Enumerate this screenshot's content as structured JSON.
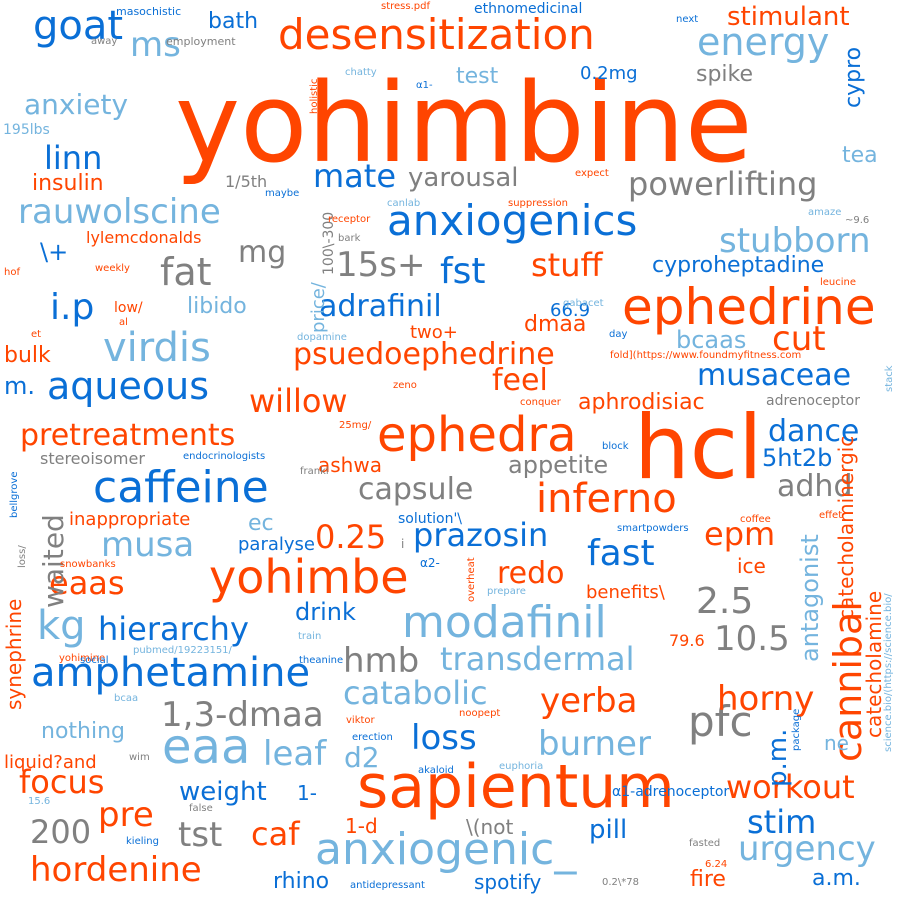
{
  "words": [
    "yohimbine",
    "hcl",
    "sapientum",
    "ephedrine",
    "ephedra",
    "caffeine",
    "yohimbe",
    "desensitization",
    "modafinil",
    "amphetamine",
    "anxiogenics",
    "anxiogenic_",
    "eaa",
    "pfc",
    "cannibal",
    "catecholamine",
    "energy",
    "rauwolscine",
    "virdis",
    "aqueous",
    "kg",
    "fat",
    "fst",
    "ms",
    "goat",
    "anxiety",
    "linn",
    "insulin",
    "mate",
    "yarousal",
    "powerlifting",
    "stubborn",
    "15s+",
    "mg",
    "stuff",
    "cyproheptadine",
    "i.p",
    "adrafinil",
    "psuedoephedrine",
    "musaceae",
    "cut",
    "feel",
    "willow",
    "pretreatments",
    "inferno",
    "capsule",
    "adhd",
    "dance",
    "5ht2b",
    "appetite",
    "prazosin",
    "fast",
    "epm",
    "0.25",
    "musa",
    "eaas",
    "redo",
    "2.5",
    "10.5",
    "hierarchy",
    "drink",
    "hmb",
    "transdermal",
    "catabolic",
    "horny",
    "yerba",
    "1,3-dmaa",
    "loss",
    "burner",
    "leaf",
    "d2",
    "nothing",
    "liquid?and",
    "focus",
    "pre",
    "200",
    "tst",
    "caf",
    "weight",
    "hordenine",
    "rhino",
    "fire",
    "pill",
    "stim",
    "workout",
    "urgency",
    "a.m.",
    "spotify",
    "1-d",
    "\\(not",
    "ne",
    "p.m.",
    "antagonist",
    "catecholaminergic",
    "stimulant",
    "cypro",
    "tea",
    "waited",
    "synephrine",
    "aphrodisiac",
    "bcaas",
    "dmaa",
    "66.9",
    "two+",
    "libido",
    "m.",
    "bulk",
    "\\+",
    "bath",
    "spike",
    "0.2mg",
    "test",
    "lylemcdonalds",
    "1/5th",
    "price/",
    "100\\-300",
    "adrenoceptor",
    "α1-adrenoceptor",
    "ashwa",
    "ec",
    "inappropriate",
    "paralyse",
    "stereoisomer",
    "solution'\\",
    "benefits\\",
    "ice",
    "79.6",
    "1-",
    "endocrinologists",
    "theanine",
    "pubmed/19223151/",
    "science.bio/(https://science.bio/",
    "fold](https://www.foundmyfitness.com",
    "stress.pdf",
    "ethnomedicinal",
    "masochistic",
    "employment",
    "away",
    "next",
    "holistic",
    "chatty",
    "α1-",
    "195lbs",
    "maybe",
    "receptor",
    "suppression",
    "canlab",
    "expect",
    "amaze",
    "~9.6",
    "bark",
    "leucine",
    "weekly",
    "hof",
    "low/",
    "al",
    "gabacet",
    "day",
    "et",
    "dopamine",
    "zeno",
    "conquer",
    "stack",
    "block",
    "25mg/",
    "frankl",
    "bellgrove",
    "loss/",
    "coffee",
    "effet",
    "smartpowders",
    "overheat",
    "α2-",
    "snowbanks",
    "prepare",
    "yohimine",
    "train",
    "social",
    "bcaa",
    "viktor",
    "noopept",
    "erection",
    "package",
    "wim",
    "euphoria",
    "akaloid",
    "15.6",
    "false",
    "kieling",
    "fasted",
    "6.24",
    "antidepressant",
    "0.2\\*78",
    "i"
  ],
  "colors": {
    "orange": "#ff4500",
    "blue": "#0a6fd6",
    "light_blue": "#74b4de",
    "gray": "#808080"
  }
}
